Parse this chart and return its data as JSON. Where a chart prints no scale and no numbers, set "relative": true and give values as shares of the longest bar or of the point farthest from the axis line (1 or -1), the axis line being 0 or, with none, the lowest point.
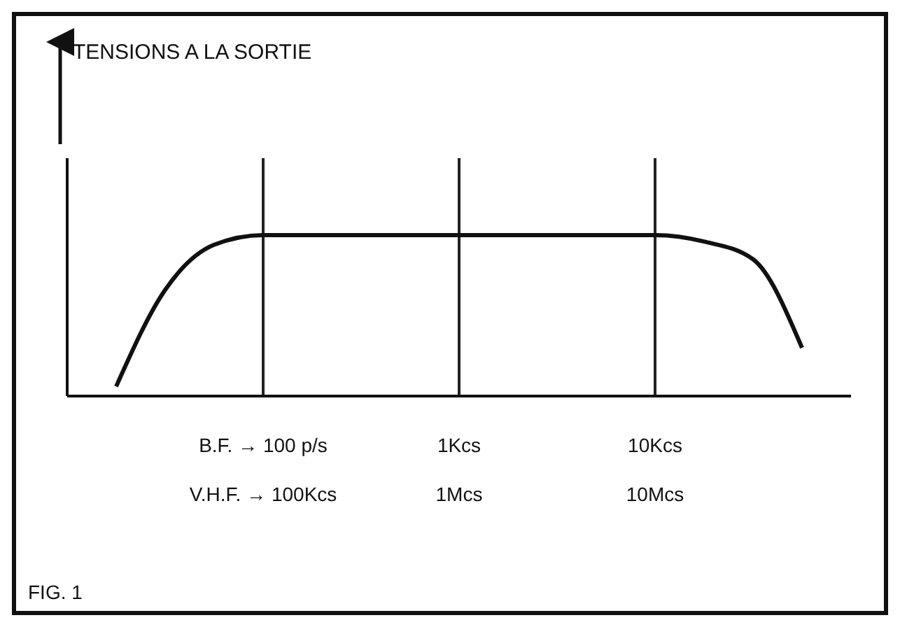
{
  "chart_data": {
    "type": "line",
    "relative": true,
    "title": "TENSIONS  A  LA  SORTIE",
    "categories": [
      null,
      null,
      null,
      null,
      "B.F. → 100 p/s\nV.H.F. → 100Kcs",
      null,
      null,
      null,
      "1Kcs\n1Mcs",
      null,
      null,
      null,
      "10Kcs\n10Mcs",
      null,
      null,
      null,
      null
    ],
    "series": [
      {
        "color": "#111111",
        "values": [
          null,
          0.06,
          0.66,
          0.94,
          1,
          1,
          1,
          1,
          1,
          1,
          1,
          1,
          1,
          0.96,
          0.85,
          0.3,
          null
        ]
      }
    ],
    "grid": "x",
    "line_style": "solid",
    "annotations": [
      "FIG. 1"
    ]
  }
}
